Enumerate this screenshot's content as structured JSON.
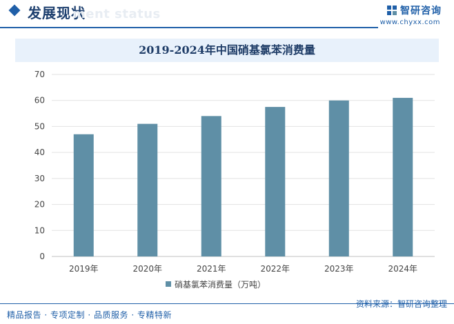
{
  "header": {
    "title": "发展现状",
    "subtitle": "ment status",
    "brand": "智研咨询",
    "url": "www.chyxx.com"
  },
  "footer": {
    "services": [
      "精品报告",
      "专项定制",
      "品质服务",
      "专精特新"
    ],
    "source_label": "资料来源：",
    "source": "智研咨询整理"
  },
  "colors": {
    "accent": "#1f5fa8",
    "bar": "#5f8fa6",
    "title_band": "#e8f1fb"
  },
  "chart_data": {
    "type": "bar",
    "title": "2019-2024年中国硝基氯苯消费量",
    "categories": [
      "2019年",
      "2020年",
      "2021年",
      "2022年",
      "2023年",
      "2024年"
    ],
    "series": [
      {
        "name": "硝基氯苯消费量（万吨）",
        "values": [
          47,
          51,
          54,
          57.5,
          60,
          61
        ]
      }
    ],
    "ylim": [
      0,
      70
    ],
    "yticks": [
      "0",
      "10",
      "20",
      "30",
      "40",
      "50",
      "60",
      "70"
    ],
    "grid": true,
    "legend": "bottom"
  }
}
